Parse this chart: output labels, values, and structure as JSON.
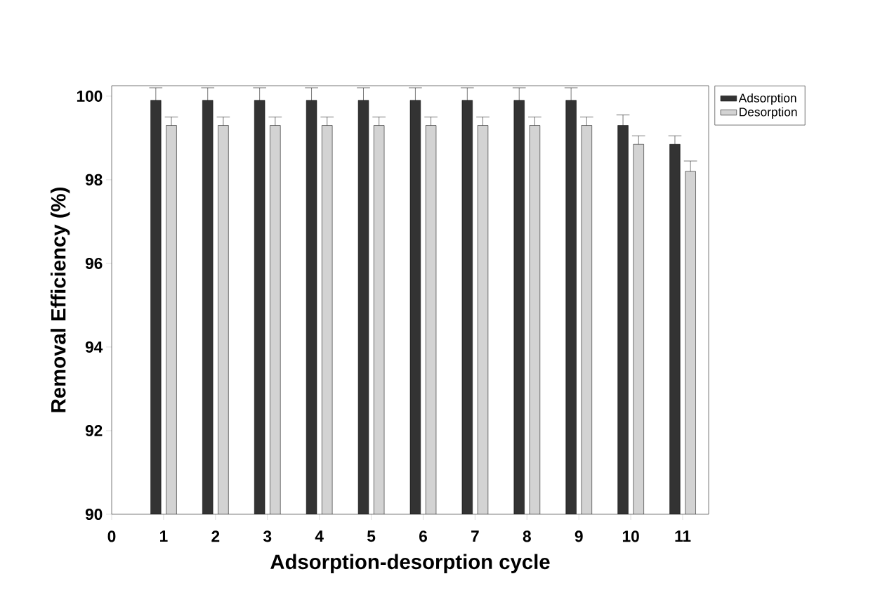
{
  "chart_data": {
    "type": "bar",
    "xlabel": "Adsorption-desorption cycle",
    "ylabel": "Removal Efficiency (%)",
    "x": [
      1,
      2,
      3,
      4,
      5,
      6,
      7,
      8,
      9,
      10,
      11
    ],
    "series": [
      {
        "name": "Adsorption",
        "color": "#333333",
        "values": [
          99.9,
          99.9,
          99.9,
          99.9,
          99.9,
          99.9,
          99.9,
          99.9,
          99.9,
          99.3,
          98.85
        ],
        "errors": [
          [
            99.9,
            100.2
          ],
          [
            99.9,
            100.2
          ],
          [
            99.9,
            100.2
          ],
          [
            99.9,
            100.2
          ],
          [
            99.9,
            100.2
          ],
          [
            99.9,
            100.2
          ],
          [
            99.9,
            100.2
          ],
          [
            99.9,
            100.2
          ],
          [
            99.9,
            100.2
          ],
          [
            99.3,
            99.55
          ],
          [
            98.85,
            99.05
          ]
        ]
      },
      {
        "name": "Desorption",
        "color": "#d3d3d3",
        "values": [
          99.3,
          99.3,
          99.3,
          99.3,
          99.3,
          99.3,
          99.3,
          99.3,
          99.3,
          98.85,
          98.2
        ],
        "errors": [
          [
            99.3,
            99.5
          ],
          [
            99.3,
            99.5
          ],
          [
            99.3,
            99.5
          ],
          [
            99.3,
            99.5
          ],
          [
            99.3,
            99.5
          ],
          [
            99.3,
            99.5
          ],
          [
            99.3,
            99.5
          ],
          [
            99.3,
            99.5
          ],
          [
            99.3,
            99.5
          ],
          [
            98.85,
            99.05
          ],
          [
            98.2,
            98.45
          ]
        ]
      }
    ],
    "xlim": [
      0,
      11.5
    ],
    "xticks": [
      0,
      1,
      2,
      3,
      4,
      5,
      6,
      7,
      8,
      9,
      10,
      11
    ],
    "ylim": [
      90,
      100.25
    ],
    "yticks": [
      90,
      92,
      94,
      96,
      98,
      100
    ],
    "grid": false,
    "legend": "top right"
  }
}
